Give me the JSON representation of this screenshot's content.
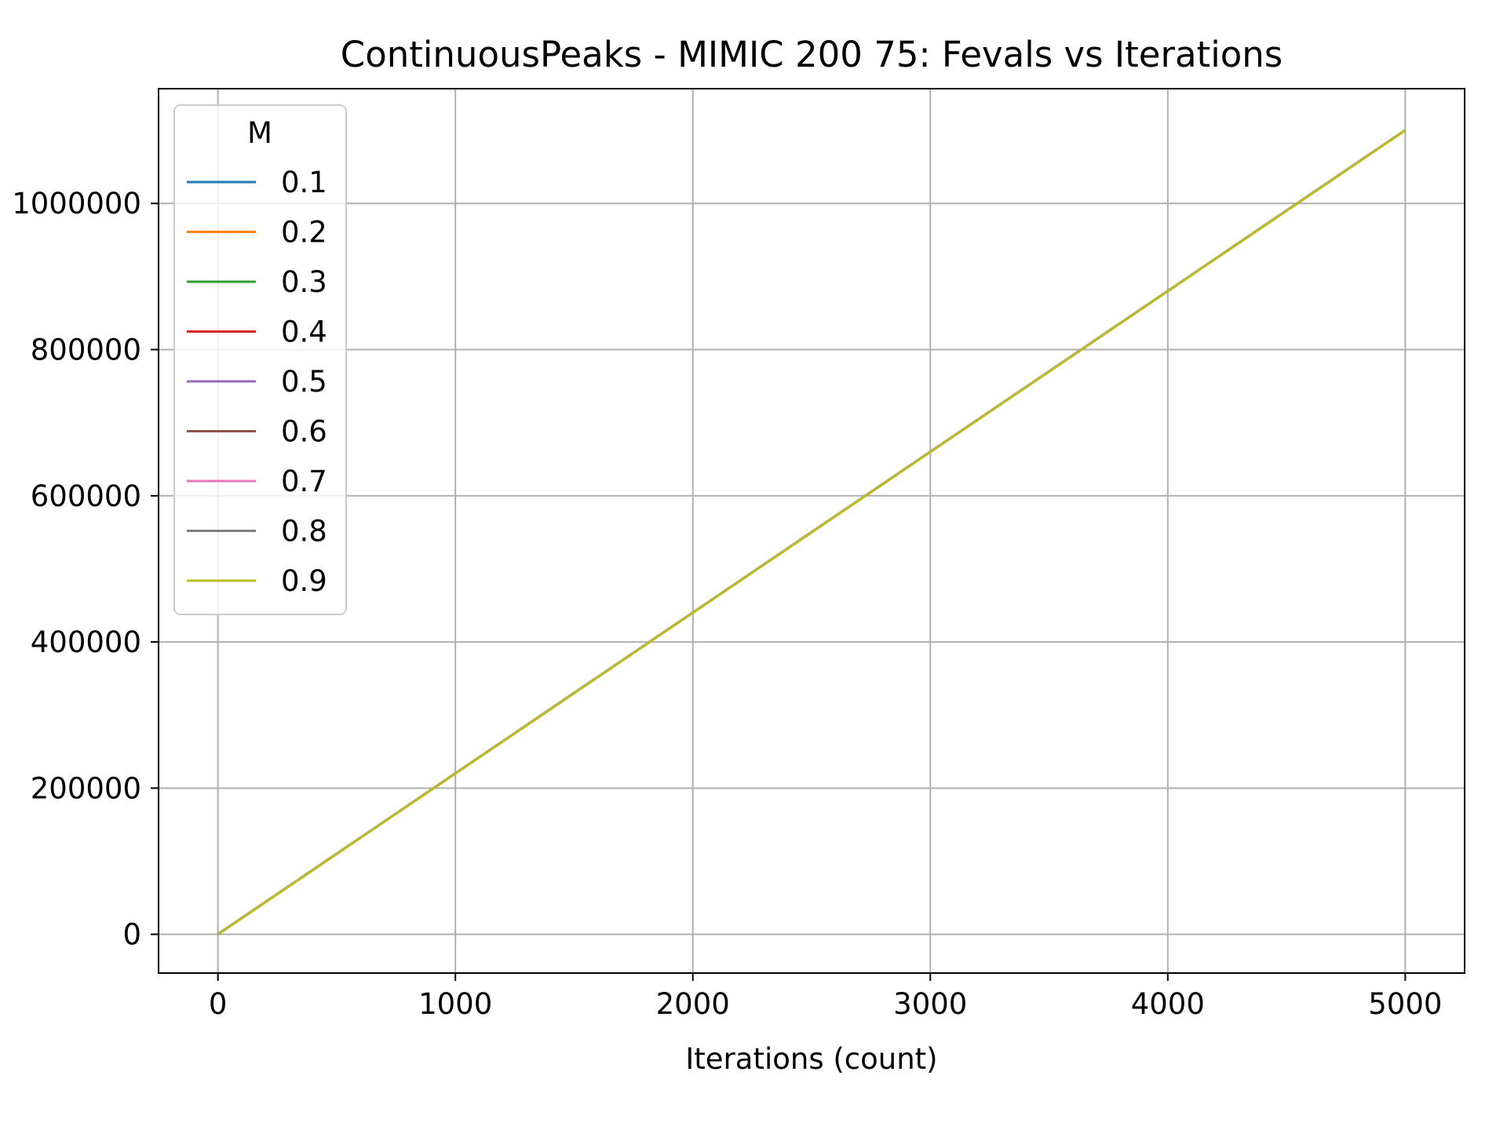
{
  "chart_data": {
    "type": "line",
    "title": "ContinuousPeaks - MIMIC 200 75: Fevals vs Iterations",
    "xlabel": "Iterations (count)",
    "ylabel": "",
    "xlim": [
      -250,
      5250
    ],
    "ylim": [
      -53000,
      1157000
    ],
    "xticks": [
      0,
      1000,
      2000,
      3000,
      4000,
      5000
    ],
    "xtick_labels": [
      "0",
      "1000",
      "2000",
      "3000",
      "4000",
      "5000"
    ],
    "yticks": [
      0,
      200000,
      400000,
      600000,
      800000,
      1000000
    ],
    "ytick_labels": [
      "0",
      "200000",
      "400000",
      "600000",
      "800000",
      "1000000"
    ],
    "grid": true,
    "legend": {
      "title": "M",
      "placement": "upper-left"
    },
    "x": [
      0,
      5000
    ],
    "series": [
      {
        "name": "0.1",
        "color": "#1f77b4",
        "values": [
          200,
          1100200
        ]
      },
      {
        "name": "0.2",
        "color": "#ff7f0e",
        "values": [
          200,
          1100200
        ]
      },
      {
        "name": "0.3",
        "color": "#2ca02c",
        "values": [
          200,
          1100200
        ]
      },
      {
        "name": "0.4",
        "color": "#d62728",
        "values": [
          200,
          1100200
        ]
      },
      {
        "name": "0.5",
        "color": "#9467bd",
        "values": [
          200,
          1100200
        ]
      },
      {
        "name": "0.6",
        "color": "#8c564b",
        "values": [
          200,
          1100200
        ]
      },
      {
        "name": "0.7",
        "color": "#e377c2",
        "values": [
          200,
          1100200
        ]
      },
      {
        "name": "0.8",
        "color": "#7f7f7f",
        "values": [
          200,
          1100200
        ]
      },
      {
        "name": "0.9",
        "color": "#bcbd22",
        "values": [
          200,
          1100200
        ]
      }
    ]
  }
}
